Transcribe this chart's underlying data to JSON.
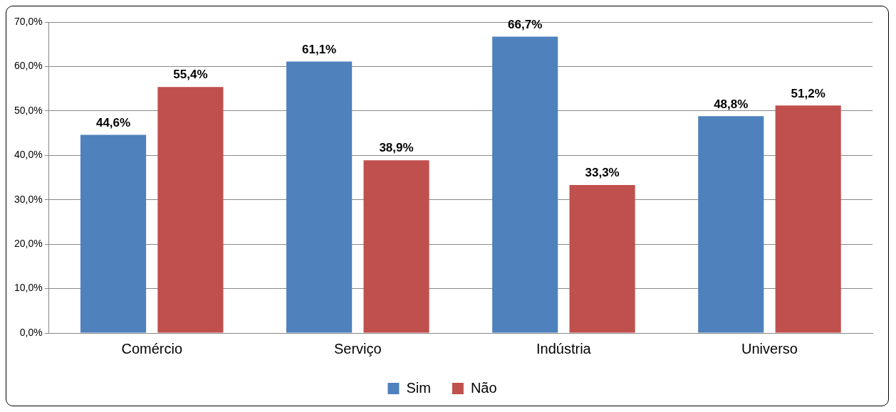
{
  "chart_data": {
    "type": "bar",
    "categories": [
      "Comércio",
      "Serviço",
      "Indústria",
      "Universo"
    ],
    "series": [
      {
        "name": "Sim",
        "color": "#4f81bd",
        "values": [
          44.6,
          61.1,
          66.7,
          48.8
        ],
        "value_labels": [
          "44,6%",
          "61,1%",
          "66,7%",
          "48,8%"
        ]
      },
      {
        "name": "Não",
        "color": "#c0504d",
        "values": [
          55.4,
          38.9,
          33.3,
          51.2
        ],
        "value_labels": [
          "55,4%",
          "38,9%",
          "33,3%",
          "51,2%"
        ]
      }
    ],
    "ylim": [
      0,
      70
    ],
    "yticks": [
      {
        "value": 0,
        "label": "0,0%"
      },
      {
        "value": 10,
        "label": "10,0%"
      },
      {
        "value": 20,
        "label": "20,0%"
      },
      {
        "value": 30,
        "label": "30,0%"
      },
      {
        "value": 40,
        "label": "40,0%"
      },
      {
        "value": 50,
        "label": "50,0%"
      },
      {
        "value": 60,
        "label": "60,0%"
      },
      {
        "value": 70,
        "label": "70,0%"
      }
    ],
    "grid": "y",
    "legend": "bottom"
  }
}
